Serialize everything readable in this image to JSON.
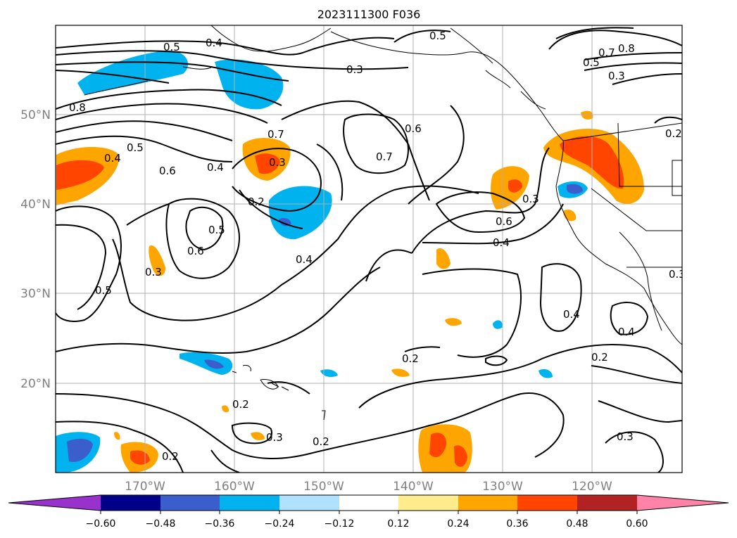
{
  "title": "2023111300 F036",
  "map": {
    "lat_labels": [
      "50°N",
      "40°N",
      "30°N",
      "20°N"
    ],
    "lon_labels": [
      "170°W",
      "160°W",
      "150°W",
      "140°W",
      "130°W",
      "120°W"
    ],
    "gridlines": true,
    "contour_labels": [
      "0.5",
      "0.4",
      "0.3",
      "0.8",
      "0.5",
      "0.4",
      "0.6",
      "0.4",
      "0.7",
      "0.3",
      "0.6",
      "0.7",
      "0.2",
      "0.5",
      "0.6",
      "0.3",
      "0.5",
      "0.6",
      "0.4",
      "0.4",
      "0.3",
      "0.2",
      "0.2",
      "0.3",
      "0.2",
      "0.2",
      "0.4",
      "0.4",
      "0.2",
      "0.3",
      "0.7",
      "0.8",
      "0.5",
      "0.3",
      "0.2",
      "0.3"
    ]
  },
  "colorbar": {
    "ticks": [
      "−0.60",
      "−0.48",
      "−0.36",
      "−0.24",
      "−0.12",
      "0.12",
      "0.24",
      "0.36",
      "0.48",
      "0.60"
    ],
    "colors": [
      "#9932cc",
      "#00008b",
      "#3a5fcd",
      "#00b2ee",
      "#b0e2ff",
      "#ffffff",
      "#ffec8b",
      "#ffa500",
      "#ff4500",
      "#b22222",
      "#ff83a9"
    ]
  }
}
